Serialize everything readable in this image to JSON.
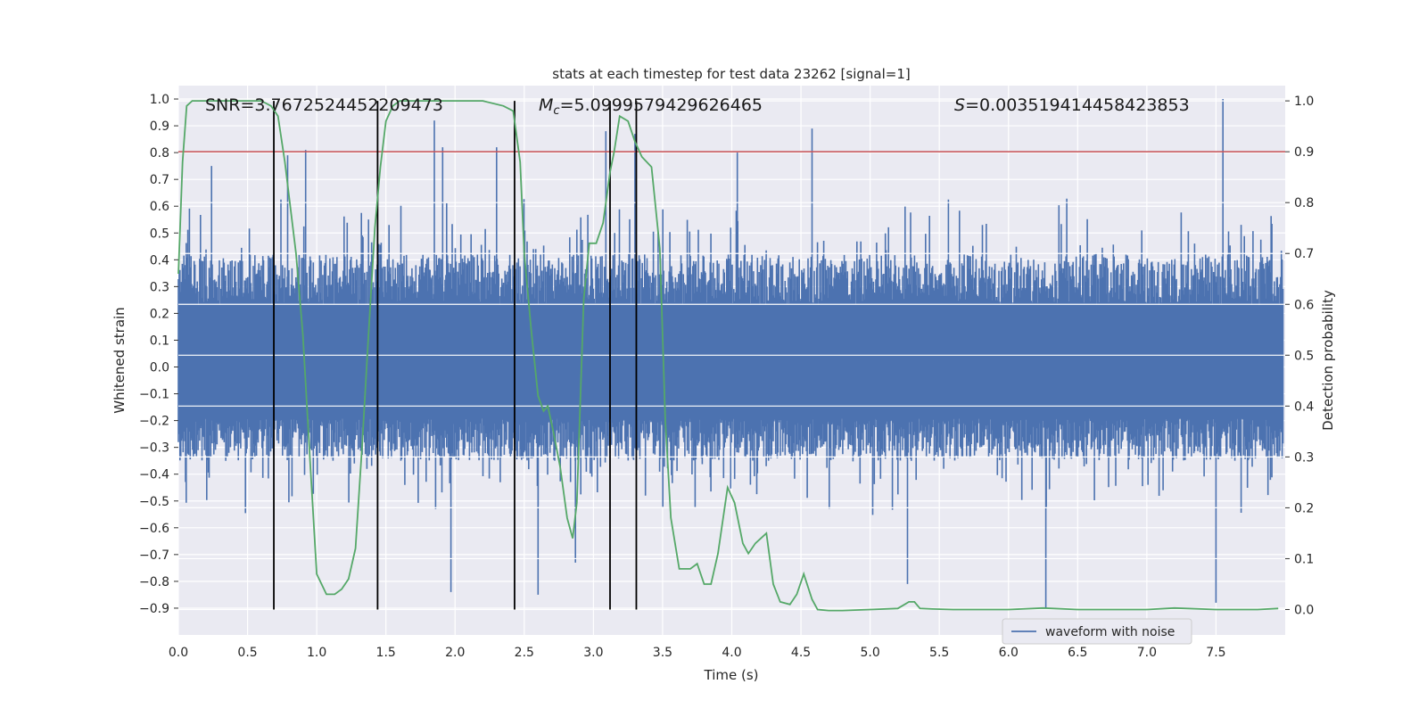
{
  "chart_data": {
    "type": "line",
    "title": "stats at each timestep for test data 23262 [signal=1]",
    "xlabel": "Time (s)",
    "ylabel_left": "Whitened strain",
    "ylabel_right": "Detection probability",
    "xlim": [
      0.0,
      8.0
    ],
    "ylim_left": [
      -1.0,
      1.05
    ],
    "ylim_right": [
      -0.05,
      1.03
    ],
    "x_ticks": [
      "0.0",
      "0.5",
      "1.0",
      "1.5",
      "2.0",
      "2.5",
      "3.0",
      "3.5",
      "4.0",
      "4.5",
      "5.0",
      "5.5",
      "6.0",
      "6.5",
      "7.0",
      "7.5"
    ],
    "y_ticks_left": [
      "−0.9",
      "−0.8",
      "−0.7",
      "−0.6",
      "−0.5",
      "−0.4",
      "−0.3",
      "−0.2",
      "−0.1",
      "0.0",
      "0.1",
      "0.2",
      "0.3",
      "0.4",
      "0.5",
      "0.6",
      "0.7",
      "0.8",
      "0.9",
      "1.0"
    ],
    "y_ticks_right": [
      "0.0",
      "0.1",
      "0.2",
      "0.3",
      "0.4",
      "0.5",
      "0.6",
      "0.7",
      "0.8",
      "0.9",
      "1.0"
    ],
    "annotations": {
      "snr": "SNR=3.7672524452209473",
      "mc_symbol": "M",
      "mc_subscript": "c",
      "mc_value": "=5.0999579429626465",
      "s_symbol": "S",
      "s_value": "=0.003519414458423853"
    },
    "threshold_right": 0.9,
    "vertical_markers_s": [
      0.69,
      1.44,
      2.43,
      3.12,
      3.31
    ],
    "series": [
      {
        "name": "waveform with noise",
        "color": "#4c72b0",
        "style": "noise",
        "envelope_typical": [
          -0.35,
          0.42
        ],
        "peaks": [
          {
            "x": 0.24,
            "y": 0.75
          },
          {
            "x": 0.79,
            "y": 0.79
          },
          {
            "x": 0.92,
            "y": 0.81
          },
          {
            "x": 1.85,
            "y": 0.92
          },
          {
            "x": 1.91,
            "y": 0.82
          },
          {
            "x": 2.3,
            "y": 0.82
          },
          {
            "x": 3.09,
            "y": 0.88
          },
          {
            "x": 3.3,
            "y": 0.87
          },
          {
            "x": 4.04,
            "y": 0.8
          },
          {
            "x": 4.58,
            "y": 0.89
          },
          {
            "x": 7.55,
            "y": 1.0
          },
          {
            "x": 1.97,
            "y": -0.84
          },
          {
            "x": 2.6,
            "y": -0.85
          },
          {
            "x": 2.87,
            "y": -0.73
          },
          {
            "x": 5.27,
            "y": -0.81
          },
          {
            "x": 6.27,
            "y": -0.9
          },
          {
            "x": 7.5,
            "y": -0.88
          }
        ]
      },
      {
        "name": "",
        "color": "#55a868",
        "axis": "right",
        "x": [
          0.0,
          0.03,
          0.06,
          0.1,
          0.2,
          0.3,
          0.4,
          0.5,
          0.6,
          0.67,
          0.72,
          0.77,
          0.85,
          0.9,
          0.95,
          1.0,
          1.07,
          1.13,
          1.18,
          1.23,
          1.28,
          1.33,
          1.37,
          1.42,
          1.46,
          1.5,
          1.55,
          1.6,
          1.7,
          1.8,
          2.0,
          2.2,
          2.35,
          2.42,
          2.47,
          2.5,
          2.55,
          2.6,
          2.64,
          2.67,
          2.71,
          2.76,
          2.81,
          2.85,
          2.88,
          2.93,
          2.97,
          3.02,
          3.07,
          3.12,
          3.15,
          3.19,
          3.25,
          3.3,
          3.35,
          3.42,
          3.48,
          3.52,
          3.56,
          3.62,
          3.7,
          3.75,
          3.8,
          3.85,
          3.9,
          3.97,
          4.02,
          4.08,
          4.12,
          4.17,
          4.25,
          4.3,
          4.35,
          4.42,
          4.47,
          4.52,
          4.58,
          4.62,
          4.7,
          4.8,
          5.0,
          5.2,
          5.28,
          5.32,
          5.36,
          5.45,
          5.6,
          6.0,
          6.25,
          6.5,
          7.0,
          7.2,
          7.5,
          7.8,
          7.95
        ],
        "y": [
          0.66,
          0.88,
          0.99,
          1.0,
          1.0,
          1.0,
          1.0,
          1.0,
          1.0,
          0.99,
          0.97,
          0.88,
          0.7,
          0.54,
          0.3,
          0.07,
          0.03,
          0.03,
          0.04,
          0.06,
          0.12,
          0.33,
          0.52,
          0.75,
          0.87,
          0.96,
          0.99,
          1.0,
          1.0,
          1.0,
          1.0,
          1.0,
          0.99,
          0.98,
          0.88,
          0.7,
          0.55,
          0.42,
          0.39,
          0.4,
          0.35,
          0.28,
          0.18,
          0.14,
          0.21,
          0.61,
          0.72,
          0.72,
          0.76,
          0.86,
          0.9,
          0.97,
          0.96,
          0.92,
          0.89,
          0.87,
          0.71,
          0.37,
          0.18,
          0.08,
          0.08,
          0.09,
          0.05,
          0.05,
          0.11,
          0.24,
          0.21,
          0.13,
          0.11,
          0.13,
          0.15,
          0.05,
          0.015,
          0.01,
          0.03,
          0.07,
          0.02,
          0.0,
          -0.002,
          -0.002,
          0.0,
          0.002,
          0.015,
          0.015,
          0.002,
          0.001,
          0.0,
          0.0,
          0.003,
          0.0,
          0.0,
          0.003,
          0.0,
          0.0,
          0.002
        ]
      }
    ],
    "legend": {
      "placement": "lower-right"
    },
    "grid": true
  }
}
